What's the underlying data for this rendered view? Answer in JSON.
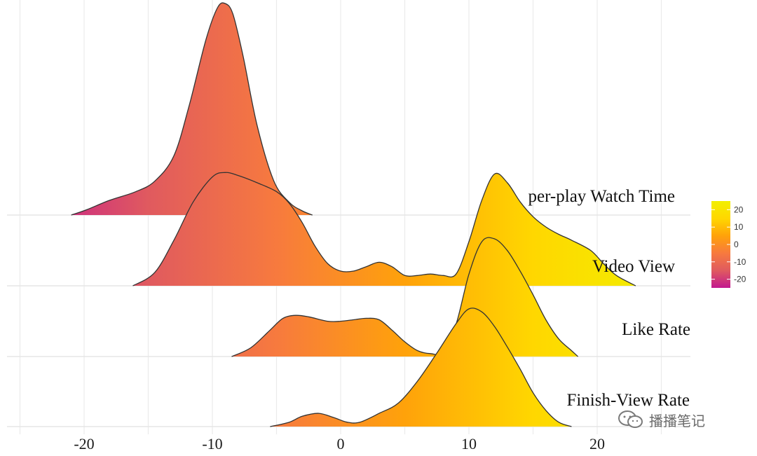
{
  "chart_data": {
    "type": "ridgeline",
    "title": "",
    "xlabel": "",
    "ylabel": "",
    "xlim": [
      -25,
      27
    ],
    "x_ticks": [
      "-20",
      "-10",
      "0",
      "10",
      "20"
    ],
    "x_tick_values": [
      -20,
      -10,
      0,
      10,
      20
    ],
    "grid": true,
    "series": [
      {
        "name": "per-play Watch Time",
        "x": [
          -21,
          -19.8,
          -18,
          -16,
          -14.5,
          -13,
          -11.8,
          -10.5,
          -9.6,
          -9,
          -8.4,
          -7.6,
          -6.5,
          -5.2,
          -4,
          -3,
          -2.2
        ],
        "density": [
          0,
          0.025,
          0.07,
          0.11,
          0.16,
          0.28,
          0.52,
          0.83,
          0.98,
          1.0,
          0.95,
          0.75,
          0.42,
          0.16,
          0.06,
          0.02,
          0
        ]
      },
      {
        "name": "Video View",
        "x": [
          -16.2,
          -14.5,
          -13,
          -11.5,
          -10,
          -9,
          -8,
          -6.5,
          -5,
          -4,
          -3,
          -2,
          -1,
          0,
          1,
          2,
          3,
          4,
          5,
          6,
          7,
          8,
          9,
          10,
          11,
          12,
          13,
          14,
          15,
          16,
          17,
          18,
          19.5,
          20.5,
          21.5,
          23
        ],
        "density": [
          0,
          0.09,
          0.31,
          0.57,
          0.74,
          0.77,
          0.75,
          0.7,
          0.64,
          0.56,
          0.43,
          0.27,
          0.15,
          0.1,
          0.1,
          0.13,
          0.16,
          0.13,
          0.07,
          0.07,
          0.08,
          0.07,
          0.08,
          0.3,
          0.58,
          0.76,
          0.7,
          0.57,
          0.47,
          0.4,
          0.35,
          0.31,
          0.24,
          0.15,
          0.07,
          0
        ]
      },
      {
        "name": "Like Rate",
        "x": [
          -8.5,
          -7,
          -5.5,
          -4.5,
          -3.5,
          -2.5,
          -1,
          0,
          1,
          2,
          3,
          4,
          5,
          6,
          7,
          8,
          9,
          10,
          11,
          12,
          13,
          14,
          15,
          16,
          17,
          18,
          18.5
        ],
        "density": [
          0,
          0.06,
          0.18,
          0.26,
          0.28,
          0.27,
          0.24,
          0.24,
          0.25,
          0.26,
          0.25,
          0.18,
          0.1,
          0.04,
          0.02,
          0.03,
          0.22,
          0.56,
          0.78,
          0.8,
          0.72,
          0.58,
          0.42,
          0.25,
          0.12,
          0.04,
          0
        ]
      },
      {
        "name": "Finish-View Rate",
        "x": [
          -5.5,
          -4,
          -3,
          -1.7,
          -0.5,
          0.5,
          1.5,
          3,
          4.5,
          6,
          7.5,
          9,
          10,
          11,
          12,
          13,
          14,
          15,
          16,
          17,
          18
        ],
        "density": [
          0,
          0.03,
          0.07,
          0.09,
          0.06,
          0.03,
          0.03,
          0.09,
          0.16,
          0.31,
          0.5,
          0.7,
          0.8,
          0.78,
          0.68,
          0.54,
          0.39,
          0.23,
          0.11,
          0.03,
          0
        ]
      }
    ],
    "colorbar": {
      "title": "",
      "range": [
        -25,
        25
      ],
      "ticks": [
        "20",
        "10",
        "0",
        "-10",
        "-20"
      ],
      "tick_values": [
        20,
        10,
        0,
        -10,
        -20
      ],
      "colors": [
        "#c2188f",
        "#e05a5f",
        "#f77a3e",
        "#ffa20a",
        "#ffd700",
        "#f2ef00"
      ]
    }
  },
  "watermark": {
    "text": "播播笔记",
    "icon": "wechat-icon"
  }
}
